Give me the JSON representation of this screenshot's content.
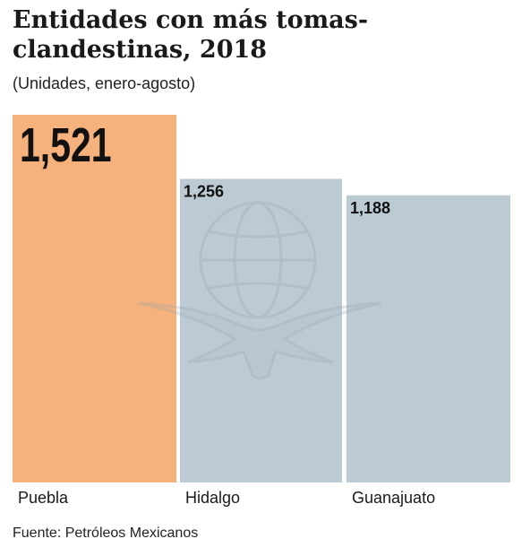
{
  "title": "Entidades con más tomas-clandestinas, 2018",
  "subtitle": "(Unidades, enero-agosto)",
  "source": "Fuente: Petróleos Mexicanos",
  "watermark_icon": "eagle-globe-logo",
  "colors": {
    "highlight": "#f5b27c",
    "other": "#bccad3",
    "value_text": "#111111"
  },
  "chart_data": {
    "type": "bar",
    "title": "Entidades con más tomas-clandestinas, 2018",
    "subtitle": "(Unidades, enero-agosto)",
    "categories": [
      "Puebla",
      "Hidalgo",
      "Guanajuato"
    ],
    "values": [
      1521,
      1256,
      1188
    ],
    "value_labels": [
      "1,521",
      "1,256",
      "1,188"
    ],
    "highlight_index": 0,
    "ylim": [
      0,
      1521
    ],
    "xlabel": "",
    "ylabel": "",
    "grid": false,
    "legend": "none"
  }
}
